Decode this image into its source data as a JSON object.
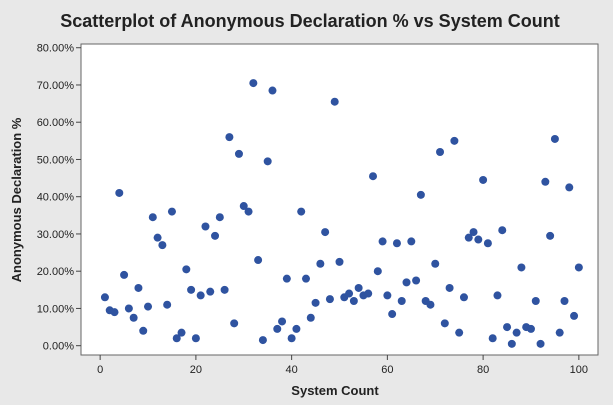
{
  "chart_data": {
    "type": "scatter",
    "title": "Scatterplot of Anonymous Declaration % vs System Count",
    "xlabel": "System Count",
    "ylabel": "Anonymous Declaration %",
    "xlim": [
      -4,
      104
    ],
    "ylim": [
      -2.5,
      81
    ],
    "x_ticks": [
      0,
      20,
      40,
      60,
      80,
      100
    ],
    "x_tick_labels": [
      "0",
      "20",
      "40",
      "60",
      "80",
      "100"
    ],
    "y_ticks": [
      0,
      10,
      20,
      30,
      40,
      50,
      60,
      70,
      80
    ],
    "y_tick_labels": [
      "0.00%",
      "10.00%",
      "20.00%",
      "30.00%",
      "40.00%",
      "50.00%",
      "60.00%",
      "70.00%",
      "80.00%"
    ],
    "grid": false,
    "legend": "none",
    "marker_color": "#2f53a0",
    "points": [
      {
        "x": 1,
        "y": 13.0
      },
      {
        "x": 2,
        "y": 9.5
      },
      {
        "x": 3,
        "y": 9.0
      },
      {
        "x": 4,
        "y": 41.0
      },
      {
        "x": 5,
        "y": 19.0
      },
      {
        "x": 6,
        "y": 10.0
      },
      {
        "x": 7,
        "y": 7.5
      },
      {
        "x": 8,
        "y": 15.5
      },
      {
        "x": 9,
        "y": 4.0
      },
      {
        "x": 10,
        "y": 10.5
      },
      {
        "x": 11,
        "y": 34.5
      },
      {
        "x": 12,
        "y": 29.0
      },
      {
        "x": 13,
        "y": 27.0
      },
      {
        "x": 14,
        "y": 11.0
      },
      {
        "x": 15,
        "y": 36.0
      },
      {
        "x": 16,
        "y": 2.0
      },
      {
        "x": 17,
        "y": 3.5
      },
      {
        "x": 18,
        "y": 20.5
      },
      {
        "x": 19,
        "y": 15.0
      },
      {
        "x": 20,
        "y": 2.0
      },
      {
        "x": 21,
        "y": 13.5
      },
      {
        "x": 22,
        "y": 32.0
      },
      {
        "x": 23,
        "y": 14.5
      },
      {
        "x": 24,
        "y": 29.5
      },
      {
        "x": 25,
        "y": 34.5
      },
      {
        "x": 26,
        "y": 15.0
      },
      {
        "x": 27,
        "y": 56.0
      },
      {
        "x": 28,
        "y": 6.0
      },
      {
        "x": 29,
        "y": 51.5
      },
      {
        "x": 30,
        "y": 37.5
      },
      {
        "x": 31,
        "y": 36.0
      },
      {
        "x": 32,
        "y": 70.5
      },
      {
        "x": 33,
        "y": 23.0
      },
      {
        "x": 34,
        "y": 1.5
      },
      {
        "x": 35,
        "y": 49.5
      },
      {
        "x": 36,
        "y": 68.5
      },
      {
        "x": 37,
        "y": 4.5
      },
      {
        "x": 38,
        "y": 6.5
      },
      {
        "x": 39,
        "y": 18.0
      },
      {
        "x": 40,
        "y": 2.0
      },
      {
        "x": 41,
        "y": 4.5
      },
      {
        "x": 42,
        "y": 36.0
      },
      {
        "x": 43,
        "y": 18.0
      },
      {
        "x": 44,
        "y": 7.5
      },
      {
        "x": 45,
        "y": 11.5
      },
      {
        "x": 46,
        "y": 22.0
      },
      {
        "x": 47,
        "y": 30.5
      },
      {
        "x": 48,
        "y": 12.5
      },
      {
        "x": 49,
        "y": 65.5
      },
      {
        "x": 50,
        "y": 22.5
      },
      {
        "x": 51,
        "y": 13.0
      },
      {
        "x": 52,
        "y": 14.0
      },
      {
        "x": 53,
        "y": 12.0
      },
      {
        "x": 54,
        "y": 15.5
      },
      {
        "x": 55,
        "y": 13.5
      },
      {
        "x": 56,
        "y": 14.0
      },
      {
        "x": 57,
        "y": 45.5
      },
      {
        "x": 58,
        "y": 20.0
      },
      {
        "x": 59,
        "y": 28.0
      },
      {
        "x": 60,
        "y": 13.5
      },
      {
        "x": 61,
        "y": 8.5
      },
      {
        "x": 62,
        "y": 27.5
      },
      {
        "x": 63,
        "y": 12.0
      },
      {
        "x": 64,
        "y": 17.0
      },
      {
        "x": 65,
        "y": 28.0
      },
      {
        "x": 66,
        "y": 17.5
      },
      {
        "x": 67,
        "y": 40.5
      },
      {
        "x": 68,
        "y": 12.0
      },
      {
        "x": 69,
        "y": 11.0
      },
      {
        "x": 70,
        "y": 22.0
      },
      {
        "x": 71,
        "y": 52.0
      },
      {
        "x": 72,
        "y": 6.0
      },
      {
        "x": 73,
        "y": 15.5
      },
      {
        "x": 74,
        "y": 55.0
      },
      {
        "x": 75,
        "y": 3.5
      },
      {
        "x": 76,
        "y": 13.0
      },
      {
        "x": 77,
        "y": 29.0
      },
      {
        "x": 78,
        "y": 30.5
      },
      {
        "x": 79,
        "y": 28.5
      },
      {
        "x": 80,
        "y": 44.5
      },
      {
        "x": 81,
        "y": 27.5
      },
      {
        "x": 82,
        "y": 2.0
      },
      {
        "x": 83,
        "y": 13.5
      },
      {
        "x": 84,
        "y": 31.0
      },
      {
        "x": 85,
        "y": 5.0
      },
      {
        "x": 86,
        "y": 0.5
      },
      {
        "x": 87,
        "y": 3.5
      },
      {
        "x": 88,
        "y": 21.0
      },
      {
        "x": 89,
        "y": 5.0
      },
      {
        "x": 90,
        "y": 4.5
      },
      {
        "x": 91,
        "y": 12.0
      },
      {
        "x": 92,
        "y": 0.5
      },
      {
        "x": 93,
        "y": 44.0
      },
      {
        "x": 94,
        "y": 29.5
      },
      {
        "x": 95,
        "y": 55.5
      },
      {
        "x": 96,
        "y": 3.5
      },
      {
        "x": 97,
        "y": 12.0
      },
      {
        "x": 98,
        "y": 42.5
      },
      {
        "x": 99,
        "y": 8.0
      },
      {
        "x": 100,
        "y": 21.0
      }
    ]
  }
}
